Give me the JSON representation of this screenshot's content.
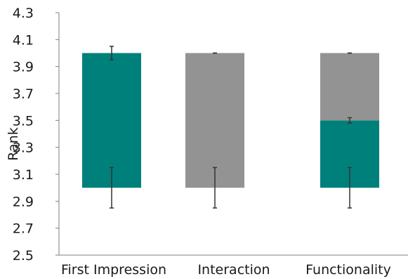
{
  "chart_data": {
    "type": "bar",
    "title": "",
    "xlabel": "",
    "ylabel": "Rank",
    "ylim": [
      2.5,
      4.3
    ],
    "yticks": [
      "2.5",
      "2.7",
      "2.9",
      "3.1",
      "3.3",
      "3.5",
      "3.7",
      "3.9",
      "4.1",
      "4.3"
    ],
    "grid": false,
    "legend": "none",
    "categories": [
      "First Impression",
      "Interaction",
      "Functionality"
    ],
    "segments": [
      [
        {
          "from": 3.0,
          "to": 4.0,
          "color": "#00807b"
        }
      ],
      [
        {
          "from": 3.0,
          "to": 4.0,
          "color": "#939393"
        }
      ],
      [
        {
          "from": 3.0,
          "to": 3.5,
          "color": "#00807b"
        },
        {
          "from": 3.5,
          "to": 4.0,
          "color": "#939393"
        }
      ]
    ],
    "error_bars": [
      [
        {
          "value": 3.0,
          "low": 2.85,
          "high": 3.15
        },
        {
          "value": 4.0,
          "low": 3.95,
          "high": 4.05
        }
      ],
      [
        {
          "value": 3.0,
          "low": 2.85,
          "high": 3.15
        },
        {
          "value": 4.0,
          "low": 4.0,
          "high": 4.0
        }
      ],
      [
        {
          "value": 3.0,
          "low": 2.85,
          "high": 3.15
        },
        {
          "value": 3.5,
          "low": 3.48,
          "high": 3.52
        },
        {
          "value": 4.0,
          "low": 4.0,
          "high": 4.0
        }
      ]
    ],
    "colors": {
      "teal": "#00807b",
      "gray": "#939393",
      "axis": "#7f7f7f",
      "error": "#333333"
    }
  }
}
